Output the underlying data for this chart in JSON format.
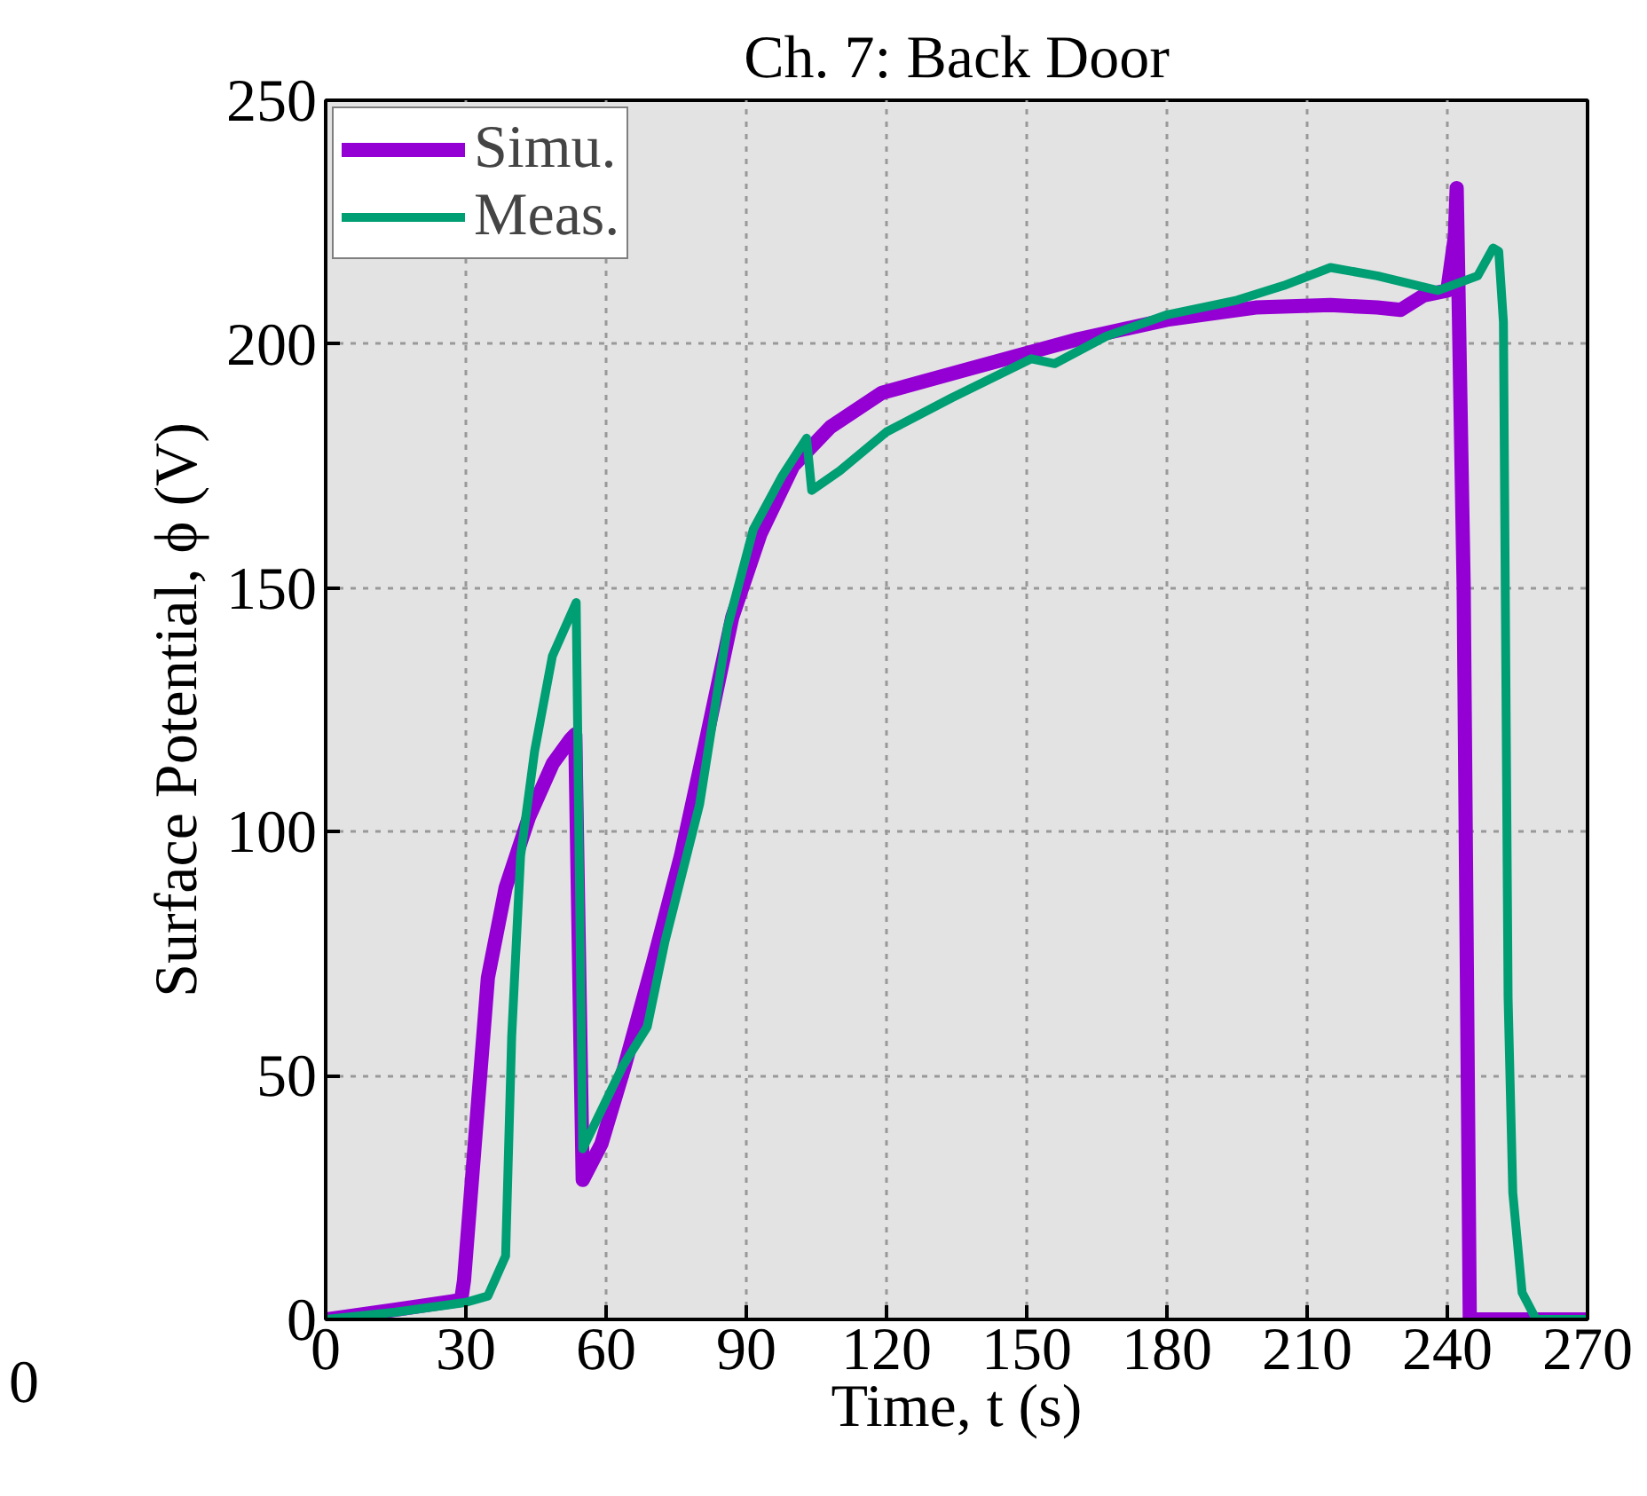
{
  "chart_data": {
    "type": "line",
    "title": "Ch. 7: Back Door",
    "xlabel": "Time, t (s)",
    "ylabel": "Surface Potential, ϕ (V)",
    "xlim": [
      0,
      270
    ],
    "ylim": [
      0,
      250
    ],
    "xticks": [
      0,
      30,
      60,
      90,
      120,
      150,
      180,
      210,
      240,
      270
    ],
    "yticks": [
      0,
      50,
      100,
      150,
      200,
      250
    ],
    "grid": true,
    "legend": "top left",
    "annotations": [
      "0"
    ],
    "series": [
      {
        "name": "Simu.",
        "color": "#9400d3",
        "x": [
          0,
          15,
          29,
          29.6,
          31,
          34.7,
          38.5,
          43.5,
          48.6,
          52.4,
          53.4,
          55,
          59,
          64,
          70,
          76,
          81,
          87,
          93,
          100,
          108,
          119,
          138,
          161,
          180,
          199,
          215,
          225,
          230,
          235,
          240,
          241.6,
          242,
          243.5,
          244.8,
          255,
          270
        ],
        "values": [
          0,
          2,
          4,
          8,
          25,
          70,
          88.5,
          103,
          114,
          119,
          120,
          28.6,
          36,
          52,
          73,
          95,
          117,
          144,
          161,
          175,
          183,
          190,
          195,
          201,
          205,
          207.5,
          208,
          207.5,
          207,
          210,
          211,
          222,
          232,
          150,
          0,
          0,
          0
        ]
      },
      {
        "name": "Meas.",
        "color": "#009e73",
        "x": [
          0,
          15,
          30,
          34.7,
          38.5,
          39.8,
          41.7,
          44.7,
          48.5,
          53.6,
          54.3,
          55,
          63.6,
          68.8,
          72.6,
          80,
          86,
          91.5,
          97.7,
          102.9,
          104,
          110,
          120,
          134,
          151,
          156,
          167,
          180,
          195,
          205,
          215,
          225,
          238,
          246.5,
          249.8,
          251,
          252,
          253,
          254,
          256,
          259,
          270
        ],
        "values": [
          0,
          1.5,
          3.5,
          4.8,
          13,
          58,
          95,
          116.5,
          136,
          147,
          90,
          35,
          52,
          60,
          77.5,
          105.6,
          142,
          162,
          173,
          180.7,
          170,
          174,
          182,
          189,
          197,
          196,
          201.6,
          206,
          209,
          212,
          215.7,
          214,
          211,
          214,
          219.7,
          219,
          204.5,
          66,
          26,
          5.5,
          0,
          0
        ]
      }
    ]
  }
}
